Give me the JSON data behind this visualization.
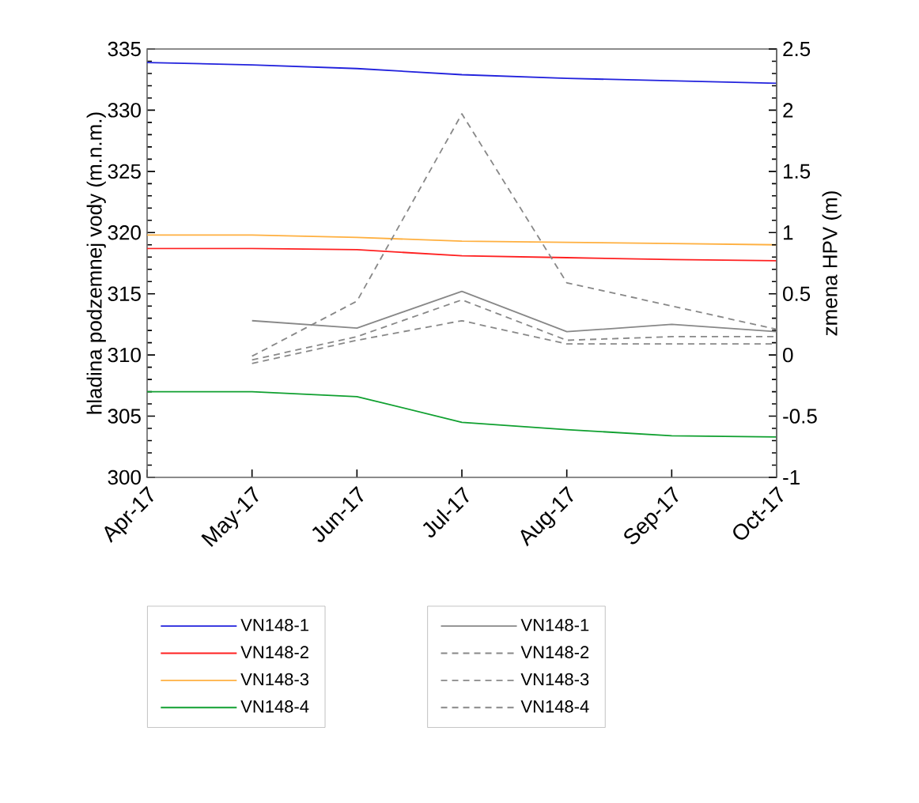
{
  "chart_data": {
    "type": "line",
    "ylabel": "hladina podzemnej vody (m.n.m.)",
    "y2label": "zmena HPV (m)",
    "categories": [
      "Apr-17",
      "May-17",
      "Jun-17",
      "Jul-17",
      "Aug-17",
      "Sep-17",
      "Oct-17"
    ],
    "series": [
      {
        "name": "VN148-1",
        "color": "#2222dd",
        "line_style": "solid",
        "values": [
          333.9,
          333.7,
          333.4,
          332.9,
          332.6,
          332.4,
          332.2
        ]
      },
      {
        "name": "VN148-2",
        "color": "#ff2020",
        "line_style": "solid",
        "values": [
          318.7,
          318.7,
          318.6,
          318.1,
          317.95,
          317.8,
          317.7
        ]
      },
      {
        "name": "VN148-3",
        "color": "#ffb040",
        "line_style": "solid",
        "values": [
          319.8,
          319.8,
          319.6,
          319.3,
          319.2,
          319.1,
          319.0
        ]
      },
      {
        "name": "VN148-4",
        "color": "#10a030",
        "line_style": "solid",
        "values": [
          307.0,
          307.0,
          306.6,
          304.5,
          303.9,
          303.4,
          303.3
        ]
      },
      {
        "name": "VN148-1",
        "color": "#888888",
        "line_style": "solid",
        "axis": "y2",
        "values": [
          null,
          0.28,
          0.22,
          0.52,
          0.19,
          0.25,
          0.19
        ]
      },
      {
        "name": "VN148-2",
        "color": "#888888",
        "line_style": "dashed",
        "axis": "y2",
        "values": [
          null,
          -0.04,
          0.15,
          0.45,
          0.12,
          0.15,
          0.15
        ]
      },
      {
        "name": "VN148-3",
        "color": "#888888",
        "line_style": "dashed",
        "axis": "y2",
        "values": [
          null,
          -0.07,
          0.12,
          0.28,
          0.09,
          0.09,
          0.09
        ]
      },
      {
        "name": "VN148-4",
        "color": "#888888",
        "line_style": "dashed",
        "axis": "y2",
        "values": [
          null,
          -0.01,
          0.44,
          1.97,
          0.59,
          0.4,
          0.21
        ]
      }
    ],
    "ylim": [
      300,
      335
    ],
    "yticks": [
      300,
      305,
      310,
      315,
      320,
      325,
      330,
      335
    ],
    "y2lim": [
      -1,
      2.5
    ],
    "y2ticks": [
      -1,
      -0.5,
      0,
      0.5,
      1,
      1.5,
      2,
      2.5
    ],
    "legend": "bottom"
  }
}
